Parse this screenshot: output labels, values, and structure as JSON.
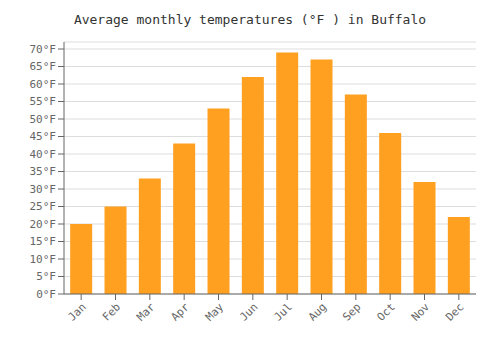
{
  "chart_data": {
    "type": "bar",
    "title": "Average monthly temperatures (°F ) in Buffalo",
    "categories": [
      "Jan",
      "Feb",
      "Mar",
      "Apr",
      "May",
      "Jun",
      "Jul",
      "Aug",
      "Sep",
      "Oct",
      "Nov",
      "Dec"
    ],
    "values": [
      20,
      25,
      33,
      43,
      53,
      62,
      69,
      67,
      57,
      46,
      32,
      22
    ],
    "color": "#FFA020",
    "ylim": [
      0,
      72
    ],
    "yticks": [
      {
        "value": 0,
        "label": "0°F"
      },
      {
        "value": 5,
        "label": "5°F"
      },
      {
        "value": 10,
        "label": "10°F"
      },
      {
        "value": 15,
        "label": "15°F"
      },
      {
        "value": 20,
        "label": "20°F"
      },
      {
        "value": 25,
        "label": "25°F"
      },
      {
        "value": 30,
        "label": "30°F"
      },
      {
        "value": 35,
        "label": "35°F"
      },
      {
        "value": 40,
        "label": "40°F"
      },
      {
        "value": 45,
        "label": "45°F"
      },
      {
        "value": 50,
        "label": "50°F"
      },
      {
        "value": 55,
        "label": "55°F"
      },
      {
        "value": 60,
        "label": "60°F"
      },
      {
        "value": 65,
        "label": "65°F"
      },
      {
        "value": 70,
        "label": "70°F"
      }
    ],
    "grid": true
  }
}
